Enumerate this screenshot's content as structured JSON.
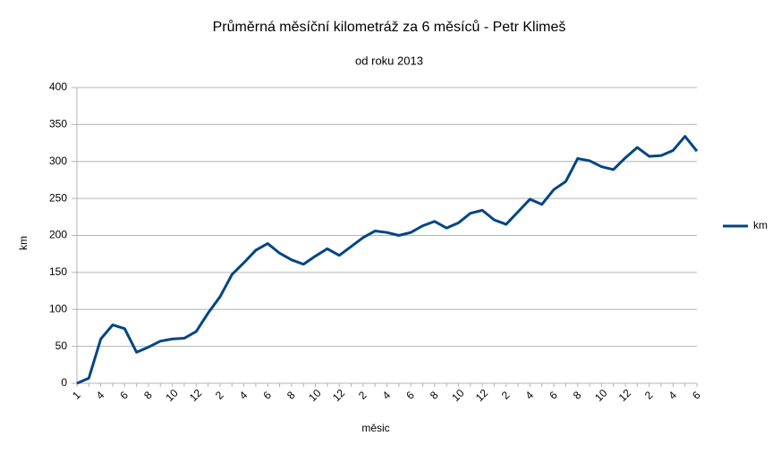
{
  "chart_data": {
    "type": "line",
    "title": "Průměrná měsíční kilometráž za 6 měsíců - Petr Klimeš",
    "subtitle": "od roku 2013",
    "x_label": "měsic",
    "y_label": "km",
    "categories": [
      "1",
      null,
      "4",
      null,
      "6",
      null,
      "8",
      null,
      "10",
      null,
      "12",
      null,
      "2",
      null,
      "4",
      null,
      "6",
      null,
      "8",
      null,
      "10",
      null,
      "12",
      null,
      "2",
      null,
      "4",
      null,
      "6",
      null,
      "8",
      null,
      "10",
      null,
      "12",
      null,
      "2",
      null,
      "4",
      null,
      "6",
      null,
      "8",
      null,
      "10",
      null,
      "12",
      null,
      "2",
      null,
      "4",
      null,
      "6"
    ],
    "series": [
      {
        "name": "km",
        "color": "#004586",
        "values": [
          0,
          7,
          60,
          79,
          74,
          42,
          49,
          57,
          60,
          61,
          70,
          95,
          117,
          147,
          163,
          180,
          189,
          176,
          167,
          161,
          172,
          182,
          173,
          185,
          197,
          206,
          204,
          200,
          204,
          213,
          219,
          210,
          217,
          230,
          234,
          221,
          215,
          232,
          249,
          242,
          262,
          273,
          304,
          301,
          293,
          289,
          305,
          319,
          307,
          308,
          315,
          334,
          314
        ]
      }
    ],
    "ylim": [
      0,
      400
    ],
    "yticks": [
      0,
      50,
      100,
      150,
      200,
      250,
      300,
      350,
      400
    ],
    "grid": true,
    "legend": "right"
  }
}
